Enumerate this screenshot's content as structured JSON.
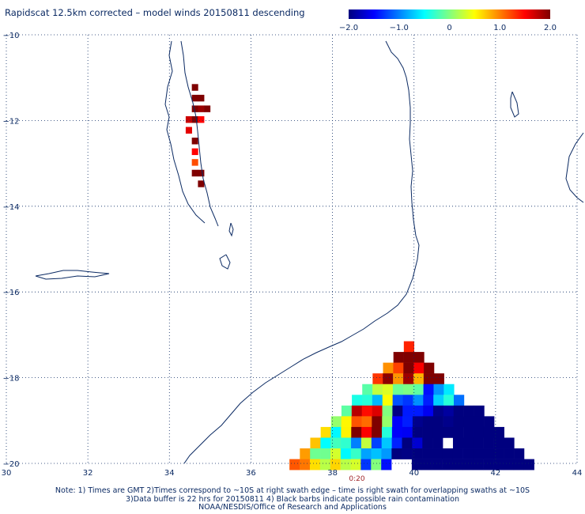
{
  "title": "Rapidscat 12.5km corrected – model winds 20150811 descending",
  "colorbar": {
    "labels": [
      "−2.0",
      "−1.0",
      "0",
      "1.0",
      "2.0"
    ],
    "values": [
      -2.0,
      -1.0,
      0,
      1.0,
      2.0
    ],
    "range": [
      -2.0,
      2.0
    ],
    "colors": [
      "#00007f",
      "#0000ff",
      "#0080ff",
      "#00ffff",
      "#80ff80",
      "#ffff00",
      "#ff8000",
      "#ff0000",
      "#7f0000"
    ]
  },
  "map": {
    "lon_range": [
      30,
      44
    ],
    "lat_range": [
      -20,
      -10
    ],
    "lon_ticks": [
      30,
      32,
      34,
      36,
      38,
      40,
      42,
      44
    ],
    "lat_ticks": [
      -10,
      -12,
      -14,
      -16,
      -18,
      -20
    ],
    "lon_labels": [
      "30",
      "32",
      "34",
      "36",
      "38",
      "40",
      "42",
      "44"
    ],
    "lat_labels": [
      "−10",
      "−12",
      "−14",
      "−16",
      "−18",
      "−20"
    ],
    "grid": true,
    "coast_color": "#0b2a63",
    "time_label": "0:20",
    "time_label_lon": 38.6
  },
  "swath": {
    "cell_deg": 0.25,
    "apex_lon": 39.85,
    "apex_lat": -17.15,
    "half_width_slope": 1.02,
    "lower_lat": -20.0
  },
  "lake_strip": [
    {
      "lon": 34.55,
      "lat": -11.15,
      "v": 2.0
    },
    {
      "lon": 34.55,
      "lat": -11.4,
      "v": 2.0
    },
    {
      "lon": 34.7,
      "lat": -11.4,
      "v": 2.0
    },
    {
      "lon": 34.55,
      "lat": -11.65,
      "v": 2.0
    },
    {
      "lon": 34.7,
      "lat": -11.65,
      "v": 1.9
    },
    {
      "lon": 34.85,
      "lat": -11.65,
      "v": 2.0
    },
    {
      "lon": 34.4,
      "lat": -11.9,
      "v": 1.7
    },
    {
      "lon": 34.55,
      "lat": -11.9,
      "v": 2.0
    },
    {
      "lon": 34.7,
      "lat": -11.9,
      "v": 1.5
    },
    {
      "lon": 34.4,
      "lat": -12.15,
      "v": 1.6
    },
    {
      "lon": 34.55,
      "lat": -12.4,
      "v": 2.0
    },
    {
      "lon": 34.55,
      "lat": -12.65,
      "v": 1.5
    },
    {
      "lon": 34.55,
      "lat": -12.9,
      "v": 1.2
    },
    {
      "lon": 34.55,
      "lat": -13.15,
      "v": 2.0
    },
    {
      "lon": 34.7,
      "lat": -13.15,
      "v": 2.0
    },
    {
      "lon": 34.7,
      "lat": -13.4,
      "v": 2.0
    }
  ],
  "notes": [
    "Note: 1) Times are GMT 2)Times correspond to ~10S at right swath edge – time is right swath for overlapping swaths at ~10S",
    "3)Data buffer is 22 hrs for 20150811 4) Black barbs indicate possible rain contamination",
    "NOAA/NESDIS/Office of Research and Applications"
  ]
}
